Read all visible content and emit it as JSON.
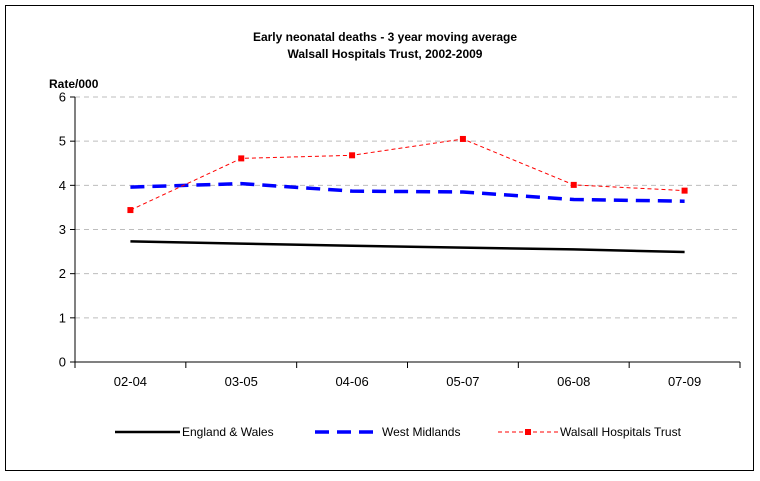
{
  "chart_data": {
    "type": "line",
    "title": "Early neonatal deaths - 3 year moving average",
    "subtitle": "Walsall Hospitals Trust, 2002-2009",
    "ylabel": "Rate/000",
    "xlabel": "",
    "categories": [
      "02-04",
      "03-05",
      "04-06",
      "05-07",
      "06-08",
      "07-09"
    ],
    "ylim": [
      0,
      6
    ],
    "yticks": [
      0,
      1,
      2,
      3,
      4,
      5,
      6
    ],
    "grid": true,
    "legend_position": "bottom",
    "series": [
      {
        "name": "England & Wales",
        "values": [
          2.73,
          2.68,
          2.63,
          2.59,
          2.55,
          2.49
        ],
        "color": "#000000",
        "style": "solid"
      },
      {
        "name": "West Midlands",
        "values": [
          3.96,
          4.04,
          3.87,
          3.85,
          3.68,
          3.64
        ],
        "color": "#0000ff",
        "style": "dashed"
      },
      {
        "name": "Walsall Hospitals Trust",
        "values": [
          3.44,
          4.61,
          4.68,
          5.05,
          4.01,
          3.88
        ],
        "color": "#ff0000",
        "style": "dashed-markers"
      }
    ]
  }
}
